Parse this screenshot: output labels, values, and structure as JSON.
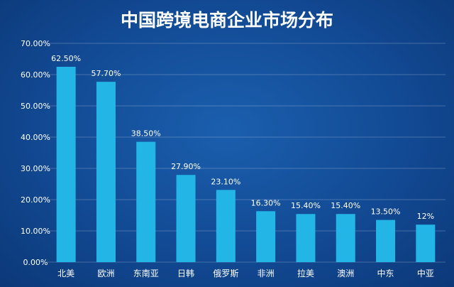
{
  "chart_data": {
    "type": "bar",
    "title": "中国跨境电商企业市场分布",
    "categories": [
      "北美",
      "欧洲",
      "东南亚",
      "日韩",
      "俄罗斯",
      "非洲",
      "拉美",
      "澳洲",
      "中东",
      "中亚"
    ],
    "values": [
      62.5,
      57.7,
      38.5,
      27.9,
      23.1,
      16.3,
      15.4,
      15.4,
      13.5,
      12
    ],
    "data_labels": [
      "62.50%",
      "57.70%",
      "38.50%",
      "27.90%",
      "23.10%",
      "16.30%",
      "15.40%",
      "15.40%",
      "13.50%",
      "12%"
    ],
    "y_ticks": [
      0,
      10,
      20,
      30,
      40,
      50,
      60,
      70
    ],
    "y_tick_labels": [
      "0.00%",
      "10.00%",
      "20.00%",
      "30.00%",
      "40.00%",
      "50.00%",
      "60.00%",
      "70.00%"
    ],
    "ylim": [
      0,
      70
    ],
    "xlabel": "",
    "ylabel": "",
    "grid": true,
    "bar_color": "#22b5e6",
    "background_color": "#124a94"
  }
}
